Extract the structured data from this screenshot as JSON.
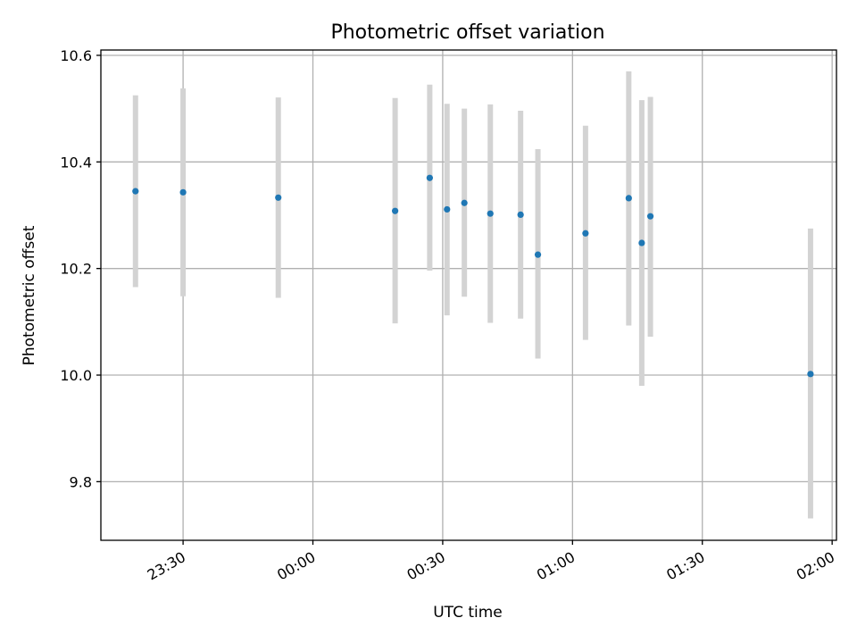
{
  "chart_data": {
    "type": "scatter",
    "title": "Photometric offset variation",
    "xlabel": "UTC time",
    "ylabel": "Photometric offset",
    "xlim": [
      "23:11",
      "02:01"
    ],
    "ylim": [
      9.69,
      10.61
    ],
    "xticks": [
      "23:30",
      "00:00",
      "00:30",
      "01:00",
      "01:30",
      "02:00"
    ],
    "yticks": [
      9.8,
      10.0,
      10.2,
      10.4,
      10.6
    ],
    "grid": true,
    "marker_color": "#1f77b4",
    "errorbar_color": "#d3d3d3",
    "points": [
      {
        "x": "23:19",
        "y": 10.345,
        "ylow": 10.165,
        "yhigh": 10.525
      },
      {
        "x": "23:30",
        "y": 10.343,
        "ylow": 10.148,
        "yhigh": 10.538
      },
      {
        "x": "23:52",
        "y": 10.333,
        "ylow": 10.145,
        "yhigh": 10.521
      },
      {
        "x": "00:19",
        "y": 10.308,
        "ylow": 10.097,
        "yhigh": 10.52
      },
      {
        "x": "00:27",
        "y": 10.37,
        "ylow": 10.196,
        "yhigh": 10.545
      },
      {
        "x": "00:31",
        "y": 10.311,
        "ylow": 10.112,
        "yhigh": 10.509
      },
      {
        "x": "00:35",
        "y": 10.323,
        "ylow": 10.147,
        "yhigh": 10.5
      },
      {
        "x": "00:41",
        "y": 10.303,
        "ylow": 10.098,
        "yhigh": 10.508
      },
      {
        "x": "00:48",
        "y": 10.301,
        "ylow": 10.106,
        "yhigh": 10.496
      },
      {
        "x": "00:52",
        "y": 10.226,
        "ylow": 10.031,
        "yhigh": 10.424
      },
      {
        "x": "01:03",
        "y": 10.266,
        "ylow": 10.066,
        "yhigh": 10.468
      },
      {
        "x": "01:13",
        "y": 10.332,
        "ylow": 10.093,
        "yhigh": 10.57
      },
      {
        "x": "01:16",
        "y": 10.248,
        "ylow": 9.98,
        "yhigh": 10.516
      },
      {
        "x": "01:18",
        "y": 10.298,
        "ylow": 10.072,
        "yhigh": 10.522
      },
      {
        "x": "01:55",
        "y": 10.002,
        "ylow": 9.731,
        "yhigh": 10.275
      }
    ]
  }
}
